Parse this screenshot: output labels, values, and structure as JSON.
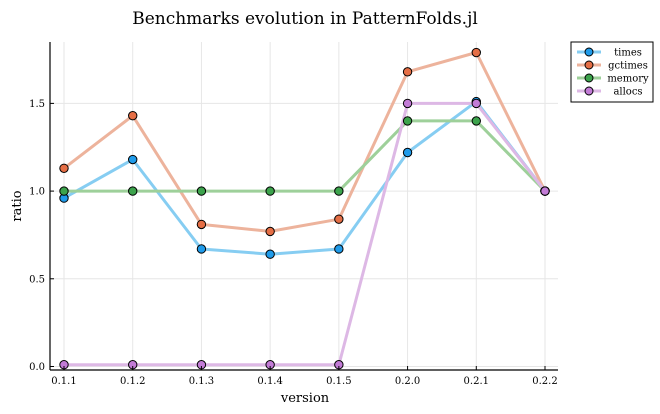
{
  "chart_data": {
    "type": "line",
    "title": "Benchmarks evolution in PatternFolds.jl",
    "xlabel": "version",
    "ylabel": "ratio",
    "categories": [
      "0.1.1",
      "0.1.2",
      "0.1.3",
      "0.1.4",
      "0.1.5",
      "0.2.0",
      "0.2.1",
      "0.2.2"
    ],
    "ylim": [
      -0.02,
      1.85
    ],
    "yticks": [
      0.0,
      0.5,
      1.0,
      1.5
    ],
    "ytick_labels": [
      "0.0",
      "0.5",
      "1.0",
      "1.5"
    ],
    "grid": true,
    "legend_position": "top-right",
    "series": [
      {
        "name": "times",
        "line_color": "#86cdf2",
        "marker_color": "#1f9bea",
        "values": [
          0.96,
          1.18,
          0.67,
          0.64,
          0.67,
          1.22,
          1.51,
          1.0
        ]
      },
      {
        "name": "gctimes",
        "line_color": "#edb39c",
        "marker_color": "#e56e45",
        "values": [
          1.13,
          1.43,
          0.81,
          0.77,
          0.84,
          1.68,
          1.79,
          1.0
        ]
      },
      {
        "name": "memory",
        "line_color": "#9ed09a",
        "marker_color": "#3ca34c",
        "values": [
          1.0,
          1.0,
          1.0,
          1.0,
          1.0,
          1.4,
          1.4,
          1.0
        ]
      },
      {
        "name": "allocs",
        "line_color": "#ddb8e5",
        "marker_color": "#c27bd6",
        "values": [
          0.01,
          0.01,
          0.01,
          0.01,
          0.01,
          1.5,
          1.5,
          1.0
        ]
      }
    ]
  }
}
